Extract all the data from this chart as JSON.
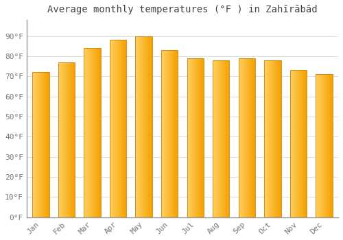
{
  "title": "Average monthly temperatures (°F ) in Zahīrābād",
  "months": [
    "Jan",
    "Feb",
    "Mar",
    "Apr",
    "May",
    "Jun",
    "Jul",
    "Aug",
    "Sep",
    "Oct",
    "Nov",
    "Dec"
  ],
  "values": [
    72,
    77,
    84,
    88,
    90,
    83,
    79,
    78,
    79,
    78,
    73,
    71
  ],
  "bar_color_left": "#FFD060",
  "bar_color_right": "#F5A000",
  "bar_edge_color": "#C8820A",
  "background_color": "#FFFFFF",
  "grid_color": "#DDDDDD",
  "text_color": "#777777",
  "title_color": "#444444",
  "ylim": [
    0,
    98
  ],
  "yticks": [
    0,
    10,
    20,
    30,
    40,
    50,
    60,
    70,
    80,
    90
  ],
  "ytick_labels": [
    "0°F",
    "10°F",
    "20°F",
    "30°F",
    "40°F",
    "50°F",
    "60°F",
    "70°F",
    "80°F",
    "90°F"
  ],
  "title_fontsize": 10,
  "tick_fontsize": 8,
  "bar_width": 0.65,
  "bar_gap": 0.05
}
